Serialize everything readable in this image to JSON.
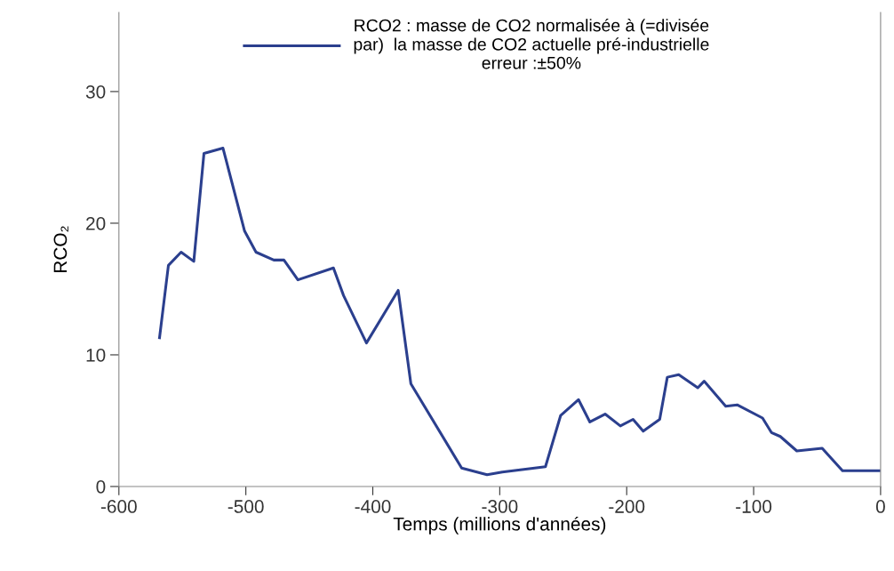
{
  "chart_data": {
    "type": "line",
    "xlabel": "Temps (millions d'années)",
    "ylabel": "RCO₂",
    "xlim": [
      -600,
      0
    ],
    "xticks": [
      -600,
      -500,
      -400,
      -300,
      -200,
      -100,
      0
    ],
    "ylim": [
      0,
      36
    ],
    "yticks": [
      0,
      10,
      20,
      30
    ],
    "grid": false,
    "legend": "top",
    "marker": "none",
    "line_style": "solid",
    "series": [
      {
        "name": "RCO2 : masse de CO2 normalisée à (=divisée\npar)  la masse de CO2 actuelle pré-industrielle\nerreur :±50%",
        "color": "#2b3f8e",
        "x": [
          -568,
          -561,
          -551,
          -541,
          -533,
          -518,
          -501,
          -492,
          -478,
          -470,
          -459,
          -431,
          -423,
          -405,
          -380,
          -370,
          -330,
          -310,
          -298,
          -264,
          -252,
          -238,
          -229,
          -217,
          -205,
          -195,
          -187,
          -174,
          -168,
          -159,
          -144,
          -139,
          -122,
          -113,
          -93,
          -86,
          -79,
          -66,
          -46,
          -30,
          0
        ],
        "values": [
          11.3,
          16.8,
          17.8,
          17.1,
          25.3,
          25.7,
          19.4,
          17.8,
          17.2,
          17.2,
          15.7,
          16.6,
          14.5,
          10.9,
          14.9,
          7.8,
          1.4,
          0.9,
          1.1,
          1.5,
          5.4,
          6.6,
          4.9,
          5.5,
          4.6,
          5.1,
          4.2,
          5.1,
          8.3,
          8.5,
          7.5,
          8.0,
          6.1,
          6.2,
          5.2,
          4.1,
          3.8,
          2.7,
          2.9,
          1.2,
          1.2
        ]
      }
    ]
  }
}
